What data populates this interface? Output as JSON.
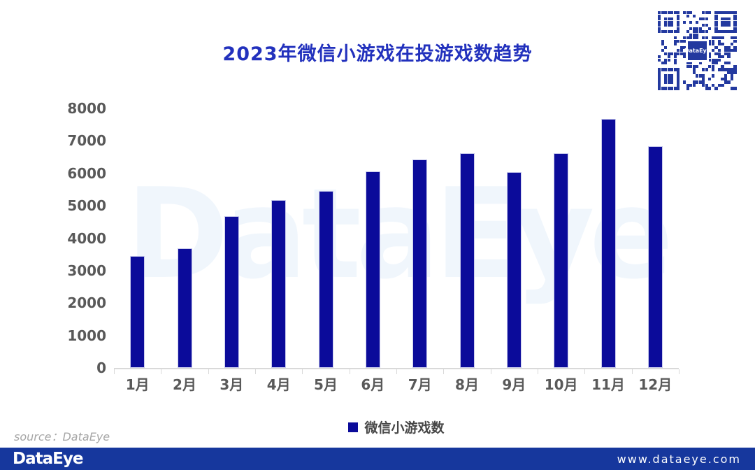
{
  "page": {
    "title": "2023年微信小游戏在投游戏数趋势",
    "watermark": "DataEye",
    "source_note": "source：DataEye",
    "footer": {
      "logo": "DataEye",
      "url": "www.dataeye.com"
    },
    "qr": {
      "center_label": "DataEye"
    }
  },
  "colors": {
    "title": "#2231bd",
    "bar_fill": "#0b0b9a",
    "bar_border": "#c9cbec",
    "axis_text": "#595959",
    "axis_line": "#d9d9d9",
    "legend_text": "#474747",
    "watermark": "#f0f6fc",
    "source_text": "#a6a6a6",
    "footer_bg": "#16379d",
    "footer_text": "#ffffff",
    "qr_color": "#23399f"
  },
  "chart_data": {
    "type": "bar",
    "title": "2023年微信小游戏在投游戏数趋势",
    "categories": [
      "1月",
      "2月",
      "3月",
      "4月",
      "5月",
      "6月",
      "7月",
      "8月",
      "9月",
      "10月",
      "11月",
      "12月"
    ],
    "series": [
      {
        "name": "微信小游戏数",
        "values": [
          3440,
          3690,
          4680,
          5180,
          5460,
          6070,
          6430,
          6620,
          6040,
          6610,
          7680,
          6840
        ]
      }
    ],
    "xlabel": "",
    "ylabel": "",
    "ylim": [
      0,
      8000
    ],
    "yticks": [
      0,
      1000,
      2000,
      3000,
      4000,
      5000,
      6000,
      7000,
      8000
    ],
    "legend": [
      "微信小游戏数"
    ],
    "legend_position": "bottom",
    "grid": false
  }
}
